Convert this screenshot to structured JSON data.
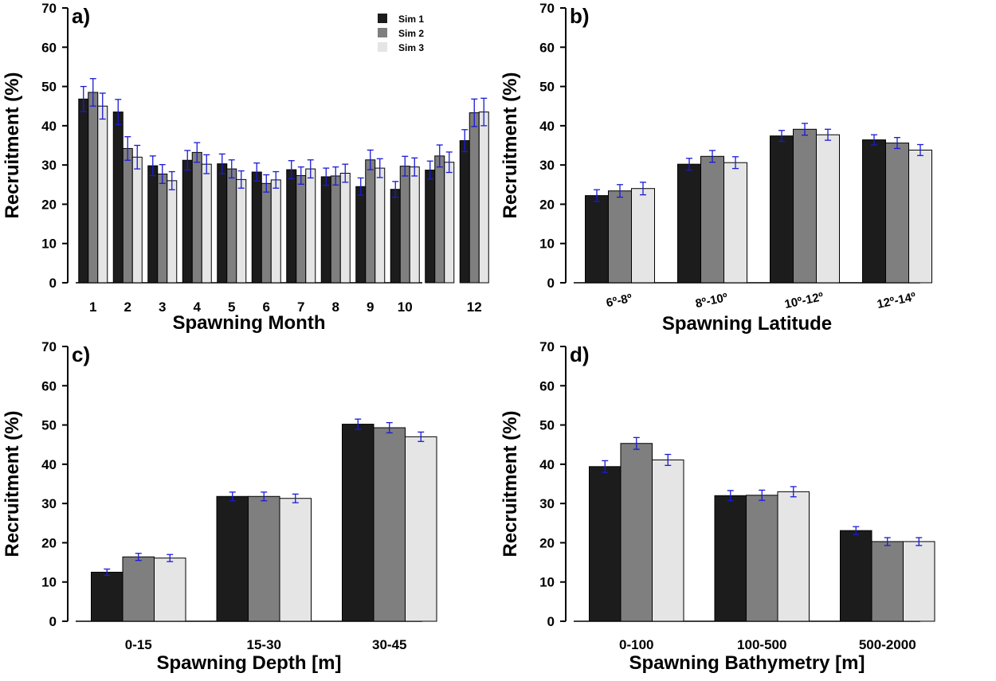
{
  "colors": {
    "sim1": "#1c1c1c",
    "sim2": "#7f7f7f",
    "sim3": "#e5e5e5",
    "error_bar": "#1a1ad6"
  },
  "legend": [
    "Sim 1",
    "Sim 2",
    "Sim 3"
  ],
  "chart_data": [
    {
      "type": "bar",
      "panel_label": "a)",
      "xlabel": "Spawning Month",
      "ylabel": "Recruitment (%)",
      "ylim": [
        0,
        70
      ],
      "yticks": [
        0,
        10,
        20,
        30,
        40,
        50,
        60,
        70
      ],
      "legend_position": "top-right",
      "categories": [
        "1",
        "2",
        "3",
        "4",
        "5",
        "6",
        "7",
        "8",
        "9",
        "10",
        "",
        "12"
      ],
      "series": [
        {
          "name": "Sim 1",
          "values": [
            46.8,
            43.5,
            29.8,
            31.2,
            30.3,
            28.2,
            28.8,
            27.0,
            24.5,
            23.8,
            28.7,
            36.2
          ],
          "errors": [
            3.2,
            3.2,
            2.5,
            2.5,
            2.5,
            2.3,
            2.3,
            2.2,
            2.2,
            2.0,
            2.3,
            2.8
          ]
        },
        {
          "name": "Sim 2",
          "values": [
            48.5,
            34.2,
            27.7,
            33.2,
            29.0,
            25.3,
            27.3,
            27.2,
            31.3,
            29.7,
            32.3,
            43.3
          ],
          "errors": [
            3.5,
            3.0,
            2.4,
            2.5,
            2.3,
            2.2,
            2.2,
            2.3,
            2.5,
            2.5,
            2.8,
            3.5
          ]
        },
        {
          "name": "Sim 3",
          "values": [
            45.0,
            32.0,
            26.0,
            30.2,
            26.3,
            26.2,
            29.0,
            27.9,
            29.2,
            29.5,
            30.7,
            43.5
          ],
          "errors": [
            3.3,
            3.0,
            2.3,
            2.4,
            2.2,
            2.1,
            2.3,
            2.3,
            2.4,
            2.3,
            2.6,
            3.5
          ]
        }
      ]
    },
    {
      "type": "bar",
      "panel_label": "b)",
      "xlabel": "Spawning Latitude",
      "ylabel": "Recruitment (%)",
      "ylim": [
        0,
        70
      ],
      "yticks": [
        0,
        10,
        20,
        30,
        40,
        50,
        60,
        70
      ],
      "categories": [
        "6º-8º",
        "8º-10º",
        "10º-12º",
        "12º-14º"
      ],
      "rotate_ticks": true,
      "series": [
        {
          "name": "Sim 1",
          "values": [
            22.2,
            30.2,
            37.4,
            36.4
          ],
          "errors": [
            1.5,
            1.5,
            1.4,
            1.3
          ]
        },
        {
          "name": "Sim 2",
          "values": [
            23.4,
            32.2,
            39.1,
            35.6
          ],
          "errors": [
            1.6,
            1.5,
            1.5,
            1.4
          ]
        },
        {
          "name": "Sim 3",
          "values": [
            24.0,
            30.6,
            37.7,
            33.8
          ],
          "errors": [
            1.6,
            1.5,
            1.4,
            1.4
          ]
        }
      ]
    },
    {
      "type": "bar",
      "panel_label": "c)",
      "xlabel": "Spawning Depth [m]",
      "ylabel": "Recruitment (%)",
      "ylim": [
        0,
        70
      ],
      "yticks": [
        0,
        10,
        20,
        30,
        40,
        50,
        60,
        70
      ],
      "categories": [
        "0-15",
        "15-30",
        "30-45"
      ],
      "series": [
        {
          "name": "Sim 1",
          "values": [
            12.5,
            31.8,
            50.2
          ],
          "errors": [
            0.8,
            1.1,
            1.3
          ]
        },
        {
          "name": "Sim 2",
          "values": [
            16.4,
            31.8,
            49.3
          ],
          "errors": [
            0.9,
            1.1,
            1.3
          ]
        },
        {
          "name": "Sim 3",
          "values": [
            16.1,
            31.3,
            47.0
          ],
          "errors": [
            0.9,
            1.1,
            1.2
          ]
        }
      ]
    },
    {
      "type": "bar",
      "panel_label": "d)",
      "xlabel": "Spawning Bathymetry [m]",
      "ylabel": "Recruitment (%)",
      "ylim": [
        0,
        70
      ],
      "yticks": [
        0,
        10,
        20,
        30,
        40,
        50,
        60,
        70
      ],
      "categories": [
        "0-100",
        "100-500",
        "500-2000"
      ],
      "series": [
        {
          "name": "Sim 1",
          "values": [
            39.4,
            32.0,
            23.1
          ],
          "errors": [
            1.5,
            1.3,
            1.0
          ]
        },
        {
          "name": "Sim 2",
          "values": [
            45.3,
            32.1,
            20.3
          ],
          "errors": [
            1.5,
            1.3,
            1.0
          ]
        },
        {
          "name": "Sim 3",
          "values": [
            41.1,
            33.0,
            20.3
          ],
          "errors": [
            1.4,
            1.3,
            1.0
          ]
        }
      ]
    }
  ]
}
